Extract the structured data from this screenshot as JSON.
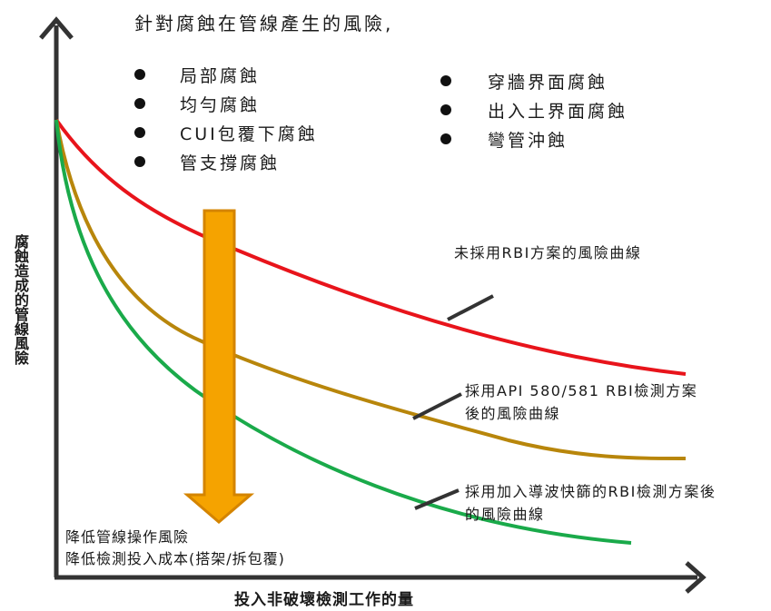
{
  "title": "針對腐蝕在管線產生的風險,",
  "risks_left": [
    "局部腐蝕",
    "均勻腐蝕",
    "CUI包覆下腐蝕",
    "管支撐腐蝕"
  ],
  "risks_right": [
    "穿牆界面腐蝕",
    "出入土界面腐蝕",
    "彎管沖蝕"
  ],
  "y_axis_label": "腐蝕造成的管線風險",
  "x_axis_label": "投入非破壞檢測工作的量",
  "curves": [
    {
      "label_lines": [
        "未採用RBI方案的風險曲線"
      ],
      "color": "#e8141b"
    },
    {
      "label_lines": [
        "採用API 580/581 RBI檢測方案",
        "後的風險曲線"
      ],
      "color": "#b8860b"
    },
    {
      "label_lines": [
        "採用加入導波快篩的RBI檢測方案後",
        "的風險曲線"
      ],
      "color": "#1aaa4a"
    }
  ],
  "arrow_color": "#f5a300",
  "note_lines": [
    "降低管線操作風險",
    "降低檢測投入成本(搭架/拆包覆)"
  ]
}
